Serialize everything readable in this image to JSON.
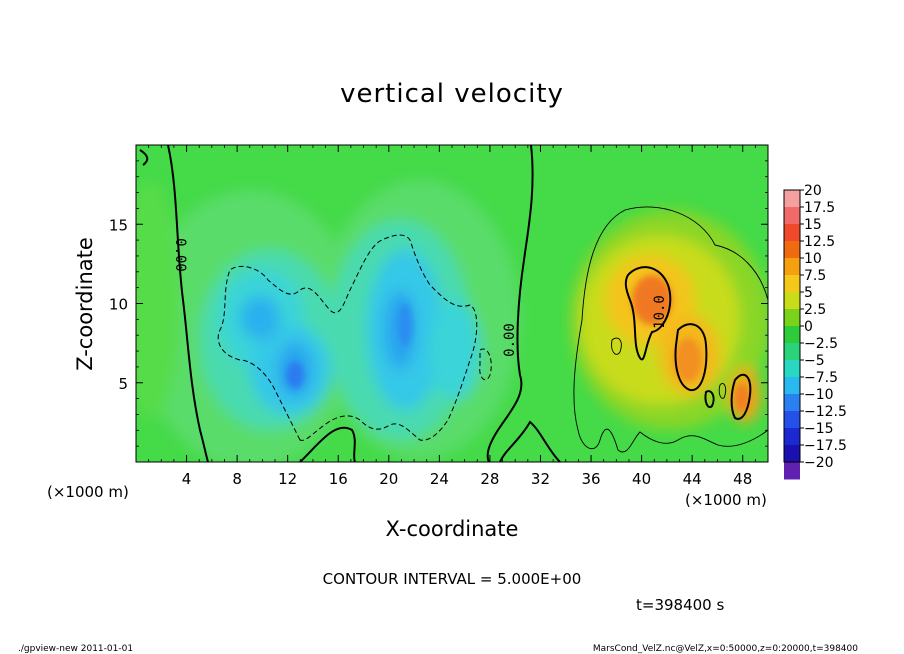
{
  "chart_data": {
    "type": "heatmap",
    "title": "vertical velocity",
    "xlabel": "X-coordinate",
    "ylabel": "Z-coordinate",
    "x_unit": "(×1000 m)",
    "y_unit": "(×1000 m)",
    "xlim": [
      0,
      50
    ],
    "ylim": [
      0,
      20
    ],
    "x_ticks": [
      4,
      8,
      12,
      16,
      20,
      24,
      28,
      32,
      36,
      40,
      44,
      48
    ],
    "y_ticks": [
      5,
      10,
      15
    ],
    "contour_interval_label": "CONTOUR INTERVAL = 5.000E+00",
    "time_label": "t=398400 s",
    "contour_labels": [
      "0.00",
      "0.00",
      "10.0"
    ],
    "colorbar": {
      "levels": [
        20,
        17.5,
        15,
        12.5,
        10,
        7.5,
        5,
        2.5,
        0,
        -2.5,
        -5,
        -7.5,
        -10,
        -12.5,
        -15,
        -17.5,
        -20
      ],
      "colors": [
        "#f4a0a0",
        "#f06a6a",
        "#ee4a2a",
        "#f06a10",
        "#f4a010",
        "#f4c81a",
        "#c8dc1a",
        "#7ad21a",
        "#2ecc3a",
        "#2ad27a",
        "#28d8c0",
        "#2ab8f0",
        "#2a80f0",
        "#2450e8",
        "#1c28d0",
        "#1a10b0",
        "#6020b0"
      ]
    },
    "features": [
      {
        "name": "downdraft-region",
        "x_range": [
          6,
          31
        ],
        "z_range": [
          1,
          14.5
        ],
        "min_value": -10
      },
      {
        "name": "updraft-region",
        "x_range": [
          34,
          50
        ],
        "z_range": [
          1,
          15.5
        ],
        "max_value": 15
      }
    ]
  },
  "footer": {
    "left": "./gpview-new  2011-01-01",
    "right": "MarsCond_VelZ.nc@VelZ,x=0:50000,z=0:20000,t=398400"
  }
}
